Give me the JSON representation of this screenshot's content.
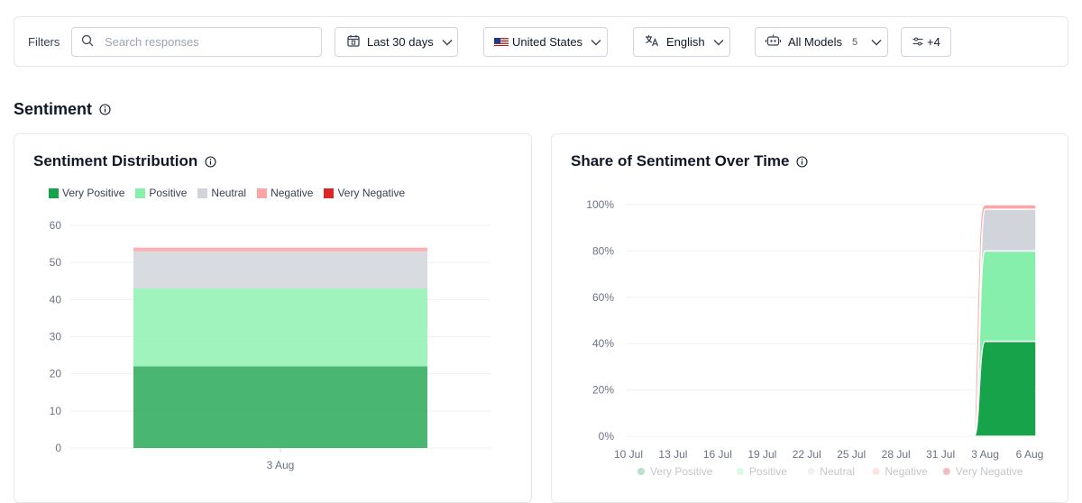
{
  "filters": {
    "label": "Filters",
    "search_placeholder": "Search responses",
    "date_range": "Last 30 days",
    "country": "United States",
    "language": "English",
    "models": "All Models",
    "models_count": "5",
    "more": "+4"
  },
  "section_title": "Sentiment",
  "colors": {
    "very_positive": "#16a34a",
    "positive": "#86efac",
    "neutral": "#d1d5db",
    "negative": "#fca5a5",
    "very_negative": "#dc2626"
  },
  "icons": [
    "search-icon",
    "calendar-icon",
    "flag-us-icon",
    "translate-icon",
    "models-icon",
    "sliders-icon",
    "chevron-down-icon",
    "info-icon"
  ],
  "distribution": {
    "title": "Sentiment Distribution",
    "legend": [
      "Very Positive",
      "Positive",
      "Neutral",
      "Negative",
      "Very Negative"
    ]
  },
  "over_time": {
    "title": "Share of Sentiment Over Time",
    "legend": [
      "Very Positive",
      "Positive",
      "Neutral",
      "Negative",
      "Very Negative"
    ]
  },
  "chart_data": [
    {
      "type": "bar",
      "title": "Sentiment Distribution",
      "categories": [
        "3 Aug"
      ],
      "ylim": [
        0,
        60
      ],
      "yticks": [
        "0",
        "10",
        "20",
        "30",
        "40",
        "50",
        "60"
      ],
      "stacked": true,
      "grid": true,
      "legend_position": "top-left",
      "series": [
        {
          "name": "Very Positive",
          "values": [
            22
          ]
        },
        {
          "name": "Positive",
          "values": [
            21
          ]
        },
        {
          "name": "Neutral",
          "values": [
            10
          ]
        },
        {
          "name": "Negative",
          "values": [
            1
          ]
        },
        {
          "name": "Very Negative",
          "values": [
            0
          ]
        }
      ]
    },
    {
      "type": "area",
      "title": "Share of Sentiment Over Time",
      "x": [
        "10 Jul",
        "13 Jul",
        "16 Jul",
        "19 Jul",
        "22 Jul",
        "25 Jul",
        "28 Jul",
        "31 Jul",
        "3 Aug",
        "6 Aug"
      ],
      "ylim": [
        0,
        100
      ],
      "yticks": [
        "0%",
        "20%",
        "40%",
        "60%",
        "80%",
        "100%"
      ],
      "stacked": true,
      "grid": true,
      "legend_position": "bottom",
      "series": [
        {
          "name": "Very Positive",
          "values": [
            0,
            0,
            0,
            0,
            0,
            0,
            0,
            0,
            41,
            41
          ]
        },
        {
          "name": "Positive",
          "values": [
            0,
            0,
            0,
            0,
            0,
            0,
            0,
            0,
            39,
            39
          ]
        },
        {
          "name": "Neutral",
          "values": [
            0,
            0,
            0,
            0,
            0,
            0,
            0,
            0,
            18,
            18
          ]
        },
        {
          "name": "Negative",
          "values": [
            0,
            0,
            0,
            0,
            0,
            0,
            0,
            0,
            2,
            2
          ]
        },
        {
          "name": "Very Negative",
          "values": [
            0,
            0,
            0,
            0,
            0,
            0,
            0,
            0,
            0,
            0
          ]
        }
      ]
    }
  ]
}
